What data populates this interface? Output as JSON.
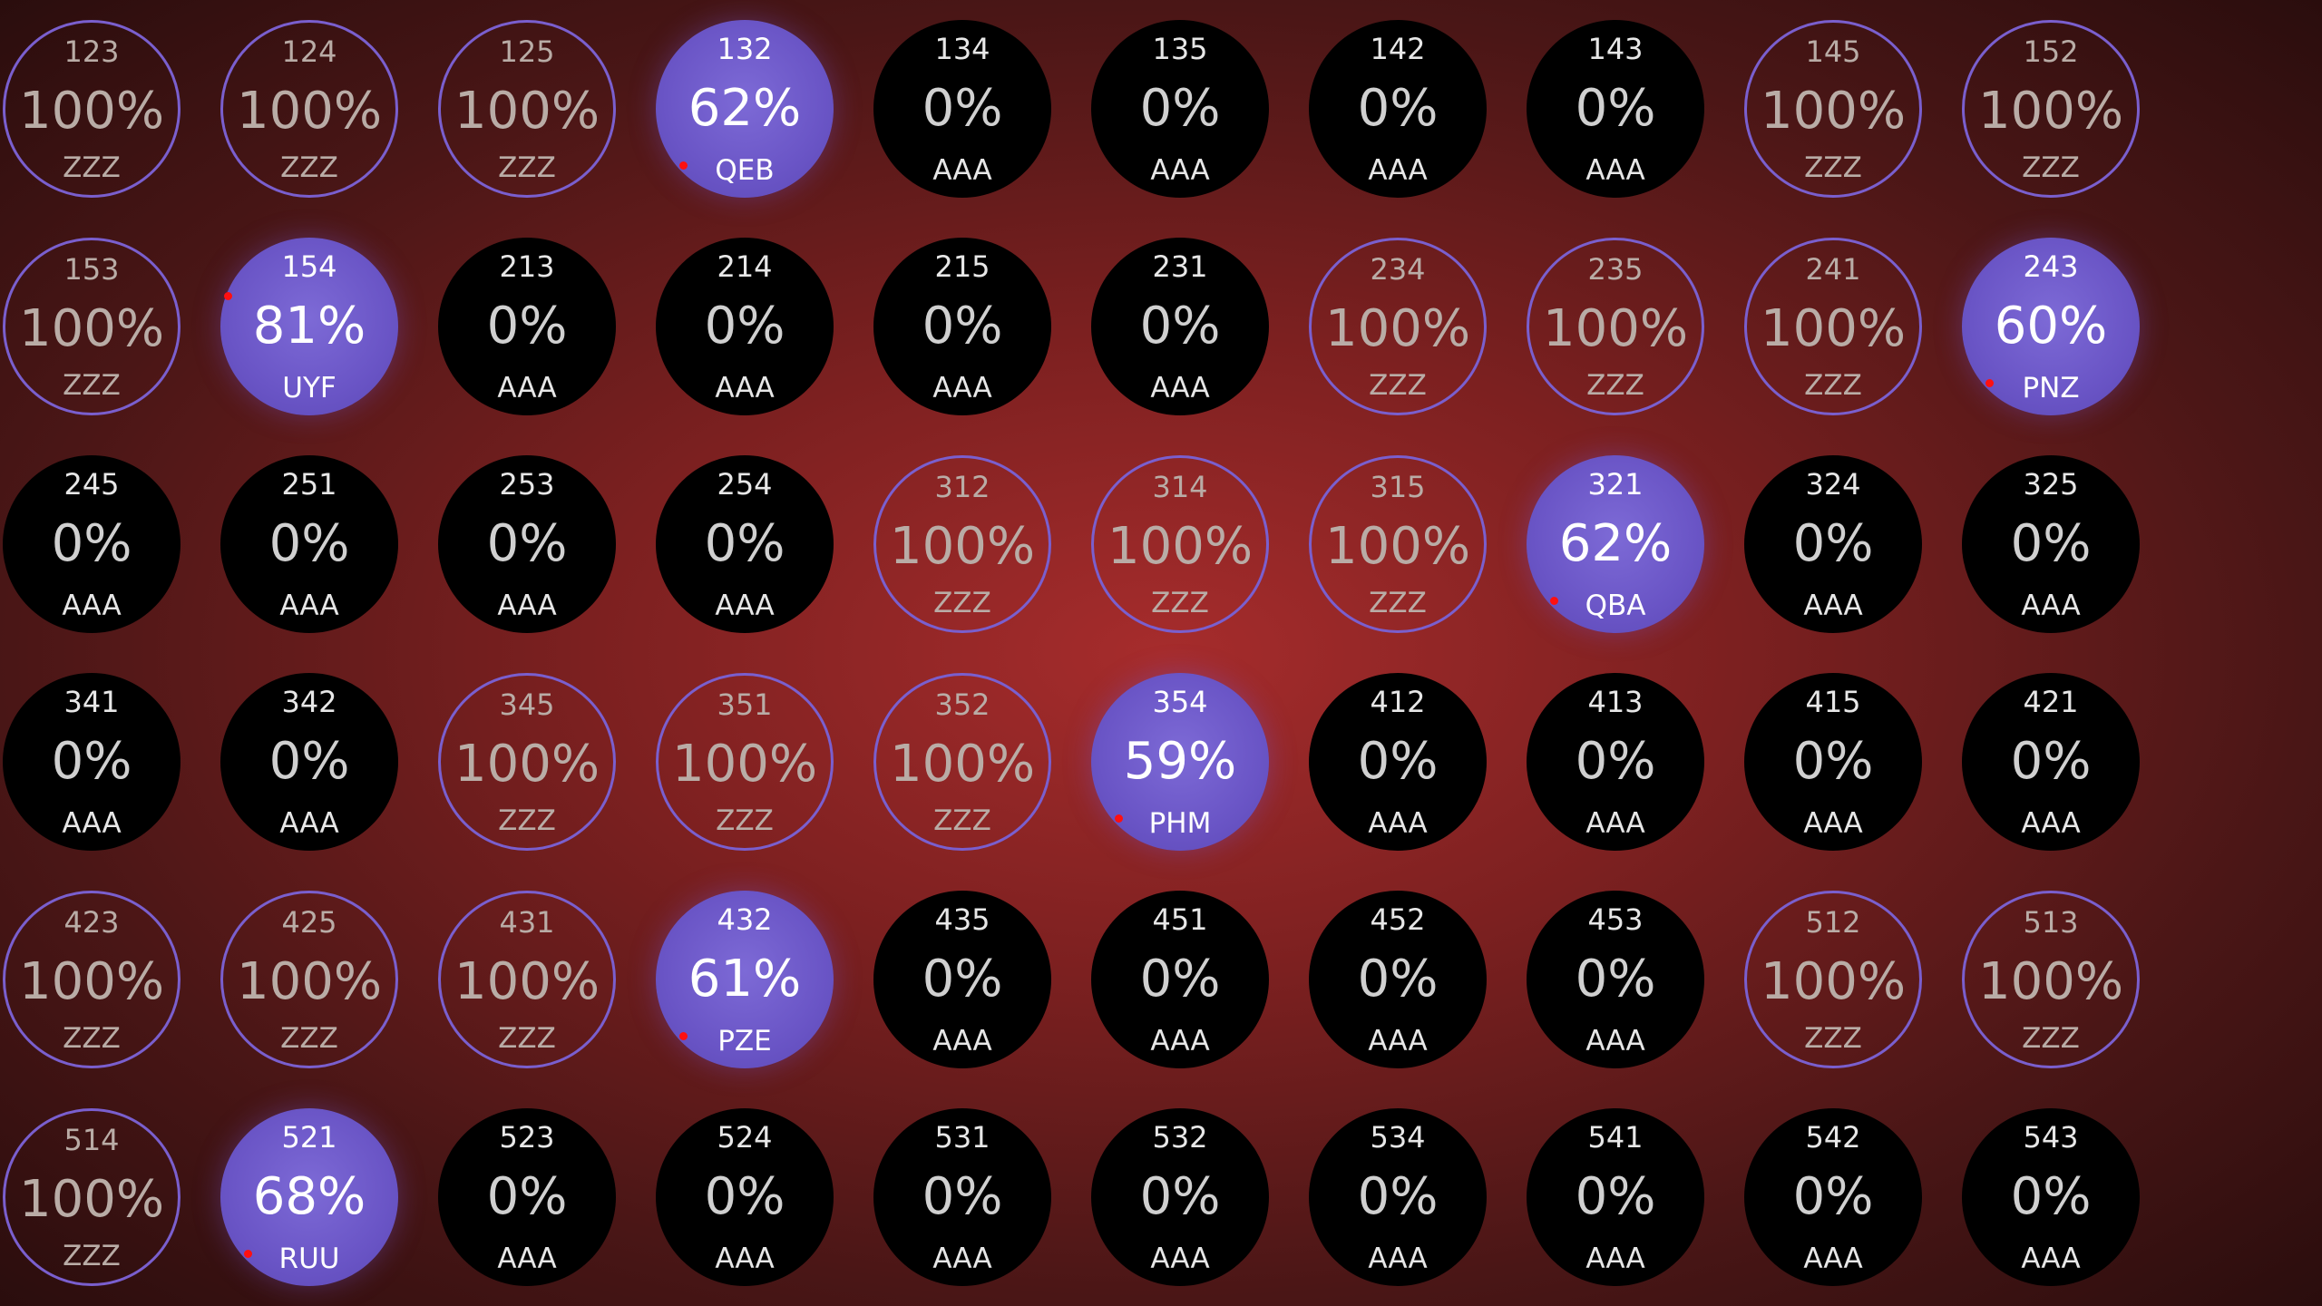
{
  "colors": {
    "background_center": "#a62c2c",
    "background_edge": "#2a0d0d",
    "ring": "#7a5fce",
    "partial_fill": "#6a55c6",
    "empty_fill": "#000000",
    "marker": "#ff1010"
  },
  "tiles": [
    {
      "id": "123",
      "percent": "100%",
      "code": "ZZZ",
      "state": "full"
    },
    {
      "id": "124",
      "percent": "100%",
      "code": "ZZZ",
      "state": "full"
    },
    {
      "id": "125",
      "percent": "100%",
      "code": "ZZZ",
      "state": "full"
    },
    {
      "id": "132",
      "percent": "62%",
      "code": "QEB",
      "state": "partial",
      "marker": "bottom-left"
    },
    {
      "id": "134",
      "percent": "0%",
      "code": "AAA",
      "state": "empty"
    },
    {
      "id": "135",
      "percent": "0%",
      "code": "AAA",
      "state": "empty"
    },
    {
      "id": "142",
      "percent": "0%",
      "code": "AAA",
      "state": "empty"
    },
    {
      "id": "143",
      "percent": "0%",
      "code": "AAA",
      "state": "empty"
    },
    {
      "id": "145",
      "percent": "100%",
      "code": "ZZZ",
      "state": "full"
    },
    {
      "id": "152",
      "percent": "100%",
      "code": "ZZZ",
      "state": "full"
    },
    {
      "id": "153",
      "percent": "100%",
      "code": "ZZZ",
      "state": "full"
    },
    {
      "id": "154",
      "percent": "81%",
      "code": "UYF",
      "state": "partial",
      "marker": "top-left"
    },
    {
      "id": "213",
      "percent": "0%",
      "code": "AAA",
      "state": "empty"
    },
    {
      "id": "214",
      "percent": "0%",
      "code": "AAA",
      "state": "empty"
    },
    {
      "id": "215",
      "percent": "0%",
      "code": "AAA",
      "state": "empty"
    },
    {
      "id": "231",
      "percent": "0%",
      "code": "AAA",
      "state": "empty"
    },
    {
      "id": "234",
      "percent": "100%",
      "code": "ZZZ",
      "state": "full"
    },
    {
      "id": "235",
      "percent": "100%",
      "code": "ZZZ",
      "state": "full"
    },
    {
      "id": "241",
      "percent": "100%",
      "code": "ZZZ",
      "state": "full"
    },
    {
      "id": "243",
      "percent": "60%",
      "code": "PNZ",
      "state": "partial",
      "marker": "bottom-left"
    },
    {
      "id": "245",
      "percent": "0%",
      "code": "AAA",
      "state": "empty"
    },
    {
      "id": "251",
      "percent": "0%",
      "code": "AAA",
      "state": "empty"
    },
    {
      "id": "253",
      "percent": "0%",
      "code": "AAA",
      "state": "empty"
    },
    {
      "id": "254",
      "percent": "0%",
      "code": "AAA",
      "state": "empty"
    },
    {
      "id": "312",
      "percent": "100%",
      "code": "ZZZ",
      "state": "full"
    },
    {
      "id": "314",
      "percent": "100%",
      "code": "ZZZ",
      "state": "full"
    },
    {
      "id": "315",
      "percent": "100%",
      "code": "ZZZ",
      "state": "full"
    },
    {
      "id": "321",
      "percent": "62%",
      "code": "QBA",
      "state": "partial",
      "marker": "bottom-left"
    },
    {
      "id": "324",
      "percent": "0%",
      "code": "AAA",
      "state": "empty"
    },
    {
      "id": "325",
      "percent": "0%",
      "code": "AAA",
      "state": "empty"
    },
    {
      "id": "341",
      "percent": "0%",
      "code": "AAA",
      "state": "empty"
    },
    {
      "id": "342",
      "percent": "0%",
      "code": "AAA",
      "state": "empty"
    },
    {
      "id": "345",
      "percent": "100%",
      "code": "ZZZ",
      "state": "full"
    },
    {
      "id": "351",
      "percent": "100%",
      "code": "ZZZ",
      "state": "full"
    },
    {
      "id": "352",
      "percent": "100%",
      "code": "ZZZ",
      "state": "full"
    },
    {
      "id": "354",
      "percent": "59%",
      "code": "PHM",
      "state": "partial",
      "marker": "bottom-left"
    },
    {
      "id": "412",
      "percent": "0%",
      "code": "AAA",
      "state": "empty"
    },
    {
      "id": "413",
      "percent": "0%",
      "code": "AAA",
      "state": "empty"
    },
    {
      "id": "415",
      "percent": "0%",
      "code": "AAA",
      "state": "empty"
    },
    {
      "id": "421",
      "percent": "0%",
      "code": "AAA",
      "state": "empty"
    },
    {
      "id": "423",
      "percent": "100%",
      "code": "ZZZ",
      "state": "full"
    },
    {
      "id": "425",
      "percent": "100%",
      "code": "ZZZ",
      "state": "full"
    },
    {
      "id": "431",
      "percent": "100%",
      "code": "ZZZ",
      "state": "full"
    },
    {
      "id": "432",
      "percent": "61%",
      "code": "PZE",
      "state": "partial",
      "marker": "bottom-left"
    },
    {
      "id": "435",
      "percent": "0%",
      "code": "AAA",
      "state": "empty"
    },
    {
      "id": "451",
      "percent": "0%",
      "code": "AAA",
      "state": "empty"
    },
    {
      "id": "452",
      "percent": "0%",
      "code": "AAA",
      "state": "empty"
    },
    {
      "id": "453",
      "percent": "0%",
      "code": "AAA",
      "state": "empty"
    },
    {
      "id": "512",
      "percent": "100%",
      "code": "ZZZ",
      "state": "full"
    },
    {
      "id": "513",
      "percent": "100%",
      "code": "ZZZ",
      "state": "full"
    },
    {
      "id": "514",
      "percent": "100%",
      "code": "ZZZ",
      "state": "full"
    },
    {
      "id": "521",
      "percent": "68%",
      "code": "RUU",
      "state": "partial",
      "marker": "bottom-left"
    },
    {
      "id": "523",
      "percent": "0%",
      "code": "AAA",
      "state": "empty"
    },
    {
      "id": "524",
      "percent": "0%",
      "code": "AAA",
      "state": "empty"
    },
    {
      "id": "531",
      "percent": "0%",
      "code": "AAA",
      "state": "empty"
    },
    {
      "id": "532",
      "percent": "0%",
      "code": "AAA",
      "state": "empty"
    },
    {
      "id": "534",
      "percent": "0%",
      "code": "AAA",
      "state": "empty"
    },
    {
      "id": "541",
      "percent": "0%",
      "code": "AAA",
      "state": "empty"
    },
    {
      "id": "542",
      "percent": "0%",
      "code": "AAA",
      "state": "empty"
    },
    {
      "id": "543",
      "percent": "0%",
      "code": "AAA",
      "state": "empty"
    }
  ]
}
